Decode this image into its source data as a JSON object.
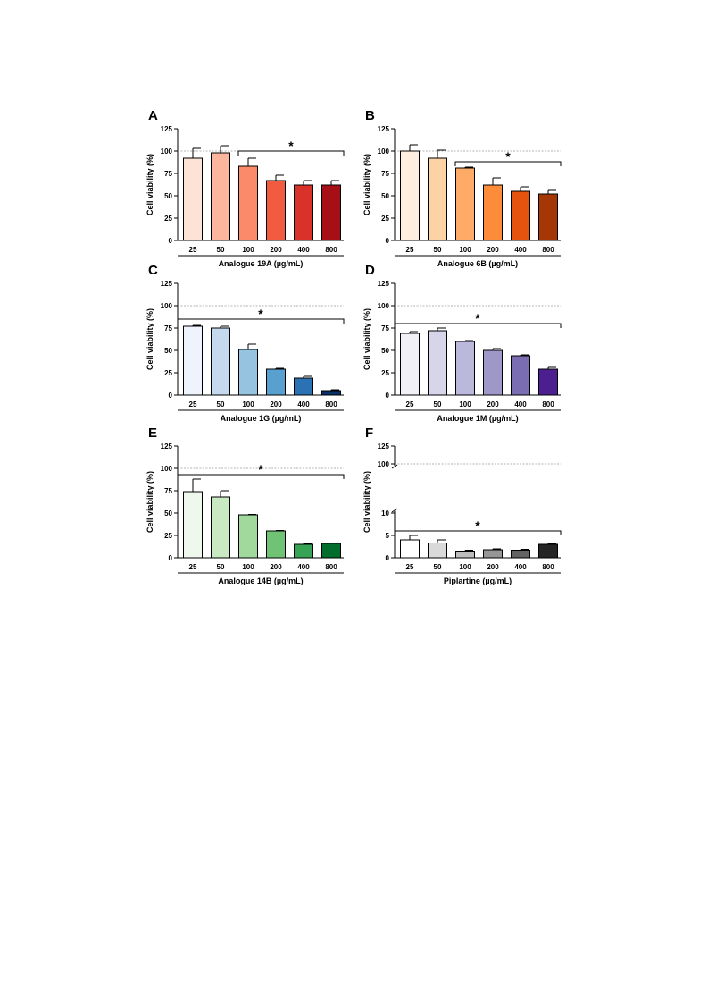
{
  "chart_data": [
    {
      "type": "bar",
      "panel": "A",
      "categories": [
        "25",
        "50",
        "100",
        "200",
        "400",
        "800"
      ],
      "values": [
        92,
        98,
        83,
        67,
        62,
        62
      ],
      "errors": [
        11,
        8,
        9,
        6,
        5,
        5
      ],
      "colors": [
        "#fde3d6",
        "#fcb69e",
        "#fb8a6a",
        "#f35b40",
        "#d8322a",
        "#a50f15"
      ],
      "xlabel": "Analogue 19A (µg/mL)",
      "ylabel": "Cell viability (%)",
      "ylim": [
        0,
        125
      ],
      "yticks": [
        0,
        25,
        50,
        75,
        100,
        125
      ],
      "reference_line": 100,
      "significance": {
        "label": "*",
        "from": 2,
        "to": 5,
        "level": 100
      }
    },
    {
      "type": "bar",
      "panel": "B",
      "categories": [
        "25",
        "50",
        "100",
        "200",
        "400",
        "800"
      ],
      "values": [
        100,
        92,
        81,
        62,
        55,
        52
      ],
      "errors": [
        7,
        9,
        1,
        8,
        5,
        4
      ],
      "colors": [
        "#feeee0",
        "#fdd2a4",
        "#fdab67",
        "#fd8c3a",
        "#e5530f",
        "#a53706"
      ],
      "xlabel": "Analogue 6B (µg/mL)",
      "ylabel": "Cell viability (%)",
      "ylim": [
        0,
        125
      ],
      "yticks": [
        0,
        25,
        50,
        75,
        100,
        125
      ],
      "reference_line": 100,
      "significance": {
        "label": "*",
        "from": 2,
        "to": 5,
        "level": 88
      }
    },
    {
      "type": "bar",
      "panel": "C",
      "categories": [
        "25",
        "50",
        "100",
        "200",
        "400",
        "800"
      ],
      "values": [
        77,
        75,
        51,
        29,
        19,
        5
      ],
      "errors": [
        1,
        2,
        6,
        1,
        2,
        1
      ],
      "colors": [
        "#eef3fc",
        "#c4d9ee",
        "#96c3df",
        "#58a0d0",
        "#2b72b4",
        "#08306b"
      ],
      "xlabel": "Analogue 1G (µg/mL)",
      "ylabel": "Cell viability (%)",
      "ylim": [
        0,
        125
      ],
      "yticks": [
        0,
        25,
        50,
        75,
        100,
        125
      ],
      "reference_line": 100,
      "significance": {
        "label": "*",
        "from": 0,
        "to": 5,
        "level": 85
      }
    },
    {
      "type": "bar",
      "panel": "D",
      "categories": [
        "25",
        "50",
        "100",
        "200",
        "400",
        "800"
      ],
      "values": [
        69,
        72,
        60,
        50,
        44,
        29
      ],
      "errors": [
        2,
        3,
        1,
        2,
        1,
        2
      ],
      "colors": [
        "#f1f0f7",
        "#d6d5ea",
        "#bab9dc",
        "#9e98c8",
        "#7a6db2",
        "#4b1f8f"
      ],
      "xlabel": "Analogue 1M (µg/mL)",
      "ylabel": "Cell viability (%)",
      "ylim": [
        0,
        125
      ],
      "yticks": [
        0,
        25,
        50,
        75,
        100,
        125
      ],
      "reference_line": 100,
      "significance": {
        "label": "*",
        "from": 0,
        "to": 5,
        "level": 80
      }
    },
    {
      "type": "bar",
      "panel": "E",
      "categories": [
        "25",
        "50",
        "100",
        "200",
        "400",
        "800"
      ],
      "values": [
        74,
        68,
        48,
        30,
        15,
        16
      ],
      "errors": [
        14,
        7,
        0.5,
        0.5,
        1,
        0.5
      ],
      "colors": [
        "#eef8ec",
        "#c8e9c2",
        "#a0d99b",
        "#70c374",
        "#36a454",
        "#006d2c"
      ],
      "xlabel": "Analogue 14B (µg/mL)",
      "ylabel": "Cell viability (%)",
      "ylim": [
        0,
        125
      ],
      "yticks": [
        0,
        25,
        50,
        75,
        100,
        125
      ],
      "reference_line": 100,
      "significance": {
        "label": "*",
        "from": 0,
        "to": 5,
        "level": 93
      }
    },
    {
      "type": "bar",
      "panel": "F",
      "categories": [
        "25",
        "50",
        "100",
        "200",
        "400",
        "800"
      ],
      "values": [
        4,
        3.3,
        1.5,
        1.8,
        1.7,
        3
      ],
      "errors": [
        1,
        0.7,
        0.2,
        0.2,
        0.2,
        0.2
      ],
      "colors": [
        "#ffffff",
        "#d9d9d9",
        "#bdbdbd",
        "#969696",
        "#636363",
        "#252525"
      ],
      "xlabel": "Piplartine (µg/mL)",
      "ylabel": "Cell viability (%)",
      "ylim": [
        0,
        125
      ],
      "yticks": [
        0,
        5,
        10,
        100,
        125
      ],
      "axis_break": [
        10,
        100
      ],
      "reference_line": 100,
      "significance": {
        "label": "*",
        "from": 0,
        "to": 5,
        "level": 6
      }
    }
  ]
}
